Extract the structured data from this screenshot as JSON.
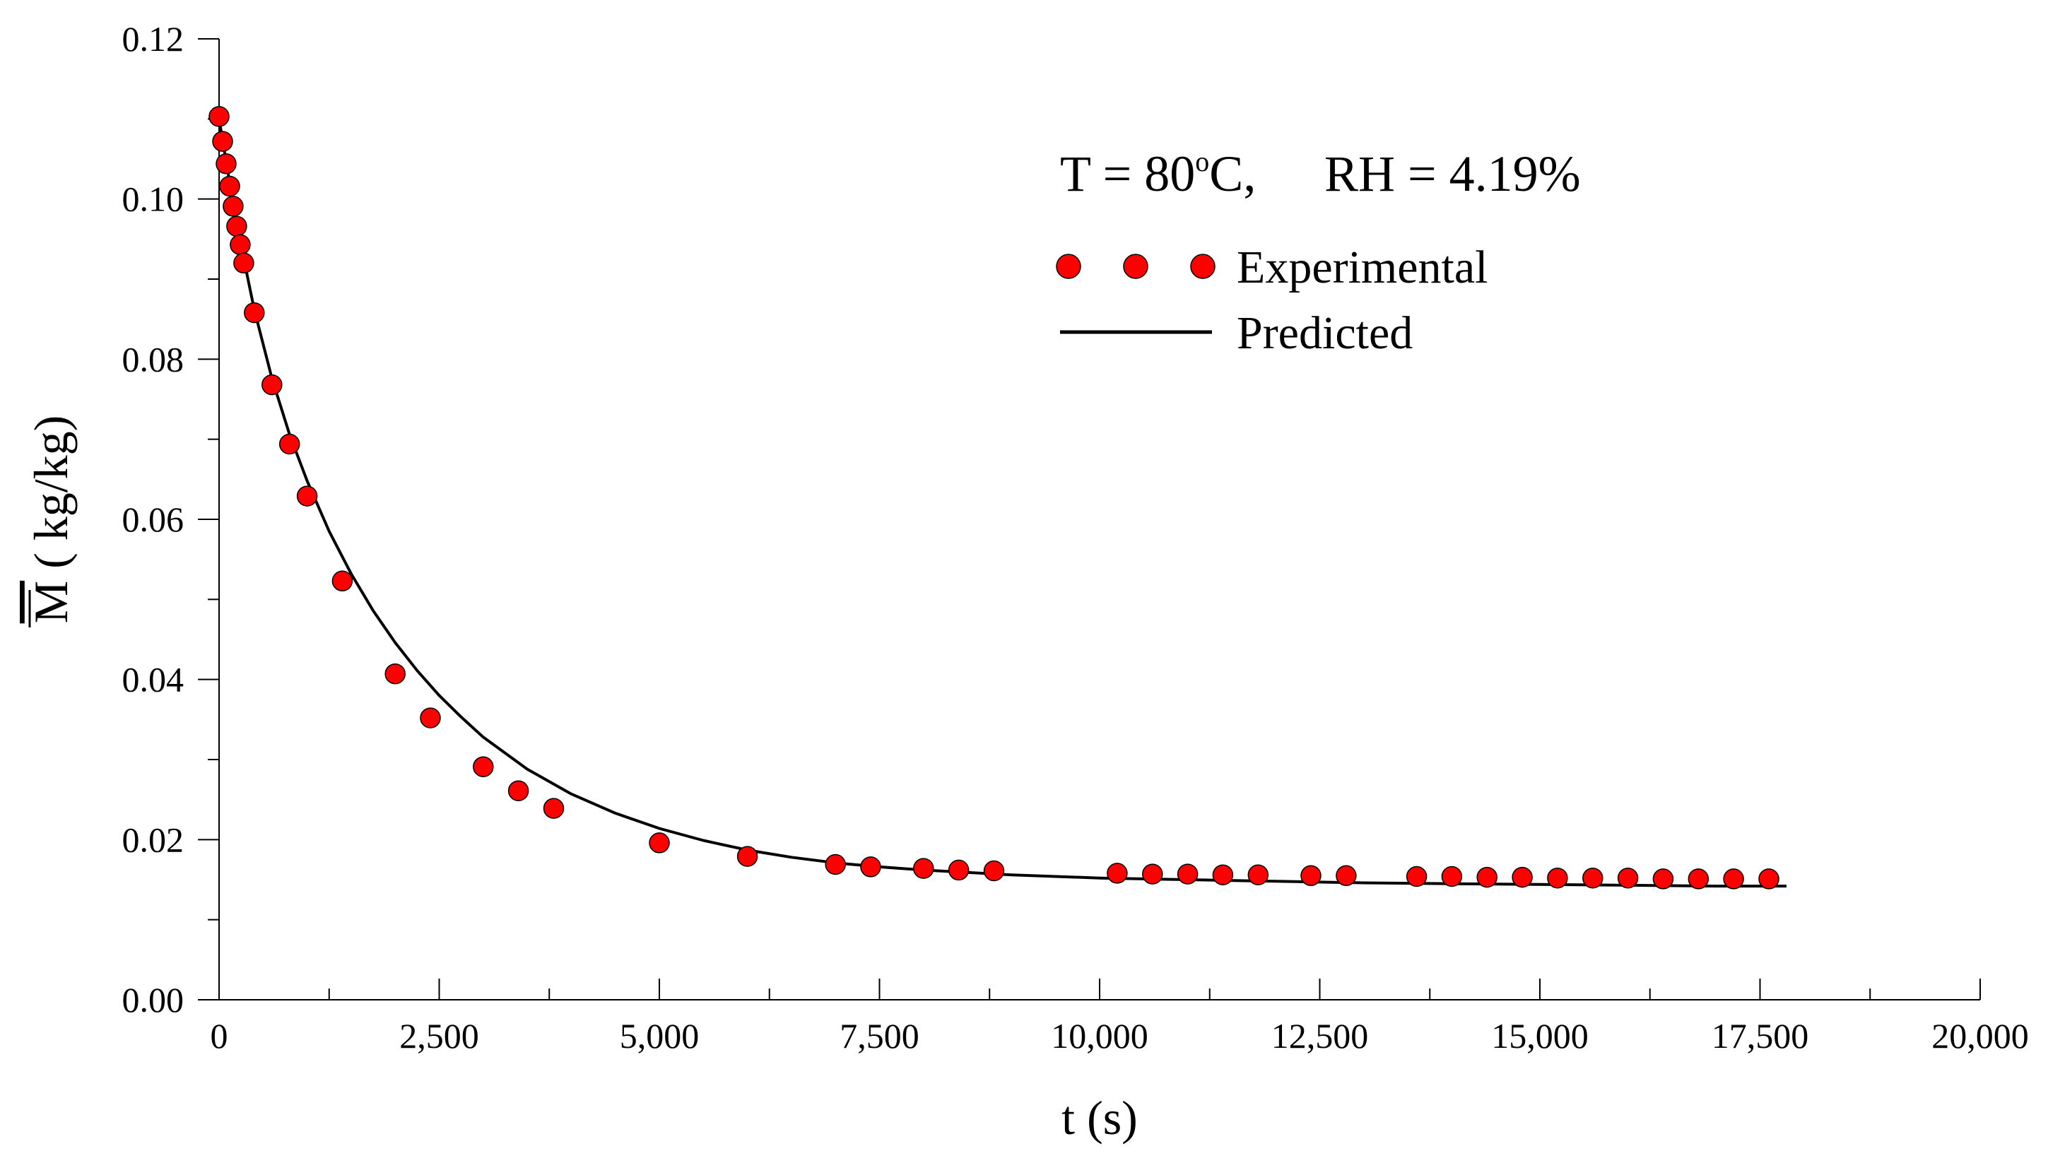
{
  "chart_data": {
    "type": "scatter",
    "annotation": {
      "t_prefix": "T = 80",
      "t_sup": "o",
      "t_suffix": "C,",
      "rh": "RH = 4.19%"
    },
    "xlabel": "t (s)",
    "ylabel_symbol": "M",
    "ylabel_units": " ( kg/kg)",
    "xlim": [
      0,
      20000
    ],
    "ylim": [
      0,
      0.12
    ],
    "x_ticks": [
      {
        "value": 0,
        "label": "0"
      },
      {
        "value": 2500,
        "label": "2,500"
      },
      {
        "value": 5000,
        "label": "5,000"
      },
      {
        "value": 7500,
        "label": "7,500"
      },
      {
        "value": 10000,
        "label": "10,000"
      },
      {
        "value": 12500,
        "label": "12,500"
      },
      {
        "value": 15000,
        "label": "15,000"
      },
      {
        "value": 17500,
        "label": "17,500"
      },
      {
        "value": 20000,
        "label": "20,000"
      }
    ],
    "x_minor_ticks": [
      1250,
      3750,
      6250,
      8750,
      11250,
      13750,
      16250,
      18750
    ],
    "y_ticks": [
      {
        "value": 0.0,
        "label": "0.00"
      },
      {
        "value": 0.02,
        "label": "0.02"
      },
      {
        "value": 0.04,
        "label": "0.04"
      },
      {
        "value": 0.06,
        "label": "0.06"
      },
      {
        "value": 0.08,
        "label": "0.08"
      },
      {
        "value": 0.1,
        "label": "0.10"
      },
      {
        "value": 0.12,
        "label": "0.12"
      }
    ],
    "y_minor_ticks": [
      0.01,
      0.03,
      0.05,
      0.07,
      0.09,
      0.11
    ],
    "legend": {
      "experimental": "Experimental",
      "predicted": "Predicted",
      "position": "top-right"
    },
    "series": [
      {
        "name": "Experimental",
        "kind": "scatter",
        "color": "#ff0000",
        "points": [
          [
            0,
            0.1103
          ],
          [
            40,
            0.1072
          ],
          [
            80,
            0.1044
          ],
          [
            120,
            0.1016
          ],
          [
            160,
            0.0991
          ],
          [
            200,
            0.0966
          ],
          [
            240,
            0.0943
          ],
          [
            280,
            0.092
          ],
          [
            400,
            0.0858
          ],
          [
            600,
            0.0768
          ],
          [
            800,
            0.0694
          ],
          [
            1000,
            0.0629
          ],
          [
            1400,
            0.0523
          ],
          [
            2000,
            0.0407
          ],
          [
            2400,
            0.0352
          ],
          [
            3000,
            0.0291
          ],
          [
            3400,
            0.0261
          ],
          [
            3800,
            0.0239
          ],
          [
            5000,
            0.0196
          ],
          [
            6000,
            0.0179
          ],
          [
            7000,
            0.0169
          ],
          [
            7400,
            0.0166
          ],
          [
            8000,
            0.0164
          ],
          [
            8400,
            0.0162
          ],
          [
            8800,
            0.0161
          ],
          [
            10200,
            0.0158
          ],
          [
            10600,
            0.0157
          ],
          [
            11000,
            0.0157
          ],
          [
            11400,
            0.0156
          ],
          [
            11800,
            0.0156
          ],
          [
            12400,
            0.0155
          ],
          [
            12800,
            0.0155
          ],
          [
            13600,
            0.0154
          ],
          [
            14000,
            0.0154
          ],
          [
            14400,
            0.0153
          ],
          [
            14800,
            0.0153
          ],
          [
            15200,
            0.0152
          ],
          [
            15600,
            0.0152
          ],
          [
            16000,
            0.0152
          ],
          [
            16400,
            0.0151
          ],
          [
            16800,
            0.0151
          ],
          [
            17200,
            0.0151
          ],
          [
            17600,
            0.0151
          ]
        ]
      },
      {
        "name": "Predicted",
        "kind": "line",
        "color": "#000000",
        "points": [
          [
            0,
            0.11
          ],
          [
            200,
            0.0968
          ],
          [
            400,
            0.0862
          ],
          [
            600,
            0.0776
          ],
          [
            800,
            0.0706
          ],
          [
            1000,
            0.0648
          ],
          [
            1250,
            0.0585
          ],
          [
            1500,
            0.0532
          ],
          [
            1750,
            0.0486
          ],
          [
            2000,
            0.0446
          ],
          [
            2250,
            0.0411
          ],
          [
            2500,
            0.038
          ],
          [
            2750,
            0.0353
          ],
          [
            3000,
            0.0328
          ],
          [
            3500,
            0.0288
          ],
          [
            4000,
            0.0257
          ],
          [
            4500,
            0.0233
          ],
          [
            5000,
            0.0214
          ],
          [
            5500,
            0.0199
          ],
          [
            6000,
            0.0187
          ],
          [
            6500,
            0.0178
          ],
          [
            7000,
            0.0171
          ],
          [
            7500,
            0.0166
          ],
          [
            8000,
            0.0162
          ],
          [
            9000,
            0.0156
          ],
          [
            10000,
            0.0152
          ],
          [
            11000,
            0.015
          ],
          [
            12000,
            0.0148
          ],
          [
            13000,
            0.0146
          ],
          [
            14000,
            0.0145
          ],
          [
            15000,
            0.0144
          ],
          [
            16000,
            0.0143
          ],
          [
            17000,
            0.0142
          ],
          [
            17800,
            0.0142
          ]
        ]
      }
    ]
  }
}
